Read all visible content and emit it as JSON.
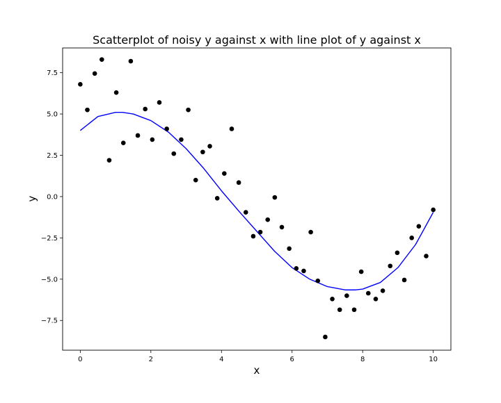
{
  "chart_data": {
    "type": "scatter",
    "title": "Scatterplot of noisy y against x with line plot of y against x",
    "xlabel": "x",
    "ylabel": "y",
    "xlim": [
      -0.5,
      10.5
    ],
    "ylim": [
      -9.3,
      9.0
    ],
    "xticks": [
      0,
      2,
      4,
      6,
      8,
      10
    ],
    "yticks": [
      -7.5,
      -5.0,
      -2.5,
      0.0,
      2.5,
      5.0,
      7.5
    ],
    "grid": false,
    "series": [
      {
        "kind": "scatter",
        "color": "#000000",
        "points": [
          [
            0.0,
            6.8
          ],
          [
            0.2,
            5.25
          ],
          [
            0.41,
            7.45
          ],
          [
            0.61,
            8.3
          ],
          [
            0.82,
            2.2
          ],
          [
            1.02,
            6.3
          ],
          [
            1.22,
            3.25
          ],
          [
            1.43,
            8.2
          ],
          [
            1.63,
            3.7
          ],
          [
            1.84,
            5.3
          ],
          [
            2.04,
            3.45
          ],
          [
            2.24,
            5.7
          ],
          [
            2.45,
            4.1
          ],
          [
            2.65,
            2.6
          ],
          [
            2.86,
            3.45
          ],
          [
            3.06,
            5.25
          ],
          [
            3.27,
            1.0
          ],
          [
            3.47,
            2.7
          ],
          [
            3.67,
            3.05
          ],
          [
            3.88,
            -0.1
          ],
          [
            4.08,
            1.4
          ],
          [
            4.29,
            4.1
          ],
          [
            4.49,
            0.85
          ],
          [
            4.69,
            -0.95
          ],
          [
            4.9,
            -2.4
          ],
          [
            5.1,
            -2.15
          ],
          [
            5.31,
            -1.4
          ],
          [
            5.51,
            -0.05
          ],
          [
            5.71,
            -1.85
          ],
          [
            5.92,
            -3.15
          ],
          [
            6.12,
            -4.35
          ],
          [
            6.33,
            -4.5
          ],
          [
            6.53,
            -2.15
          ],
          [
            6.73,
            -5.1
          ],
          [
            6.94,
            -8.5
          ],
          [
            7.14,
            -6.2
          ],
          [
            7.35,
            -6.85
          ],
          [
            7.55,
            -6.0
          ],
          [
            7.76,
            -6.85
          ],
          [
            7.96,
            -4.55
          ],
          [
            8.16,
            -5.85
          ],
          [
            8.37,
            -6.2
          ],
          [
            8.57,
            -5.7
          ],
          [
            8.78,
            -4.2
          ],
          [
            8.98,
            -3.4
          ],
          [
            9.18,
            -5.05
          ],
          [
            9.39,
            -2.5
          ],
          [
            9.59,
            -1.8
          ],
          [
            9.8,
            -3.6
          ],
          [
            10.0,
            -0.8
          ]
        ]
      },
      {
        "kind": "line",
        "color": "#0000ff",
        "points": [
          [
            0.0,
            4.0
          ],
          [
            0.5,
            4.85
          ],
          [
            1.0,
            5.1
          ],
          [
            1.2,
            5.1
          ],
          [
            1.5,
            5.0
          ],
          [
            2.0,
            4.6
          ],
          [
            2.5,
            3.9
          ],
          [
            3.0,
            2.9
          ],
          [
            3.5,
            1.7
          ],
          [
            4.0,
            0.35
          ],
          [
            4.5,
            -0.9
          ],
          [
            5.0,
            -2.1
          ],
          [
            5.5,
            -3.3
          ],
          [
            6.0,
            -4.3
          ],
          [
            6.5,
            -5.0
          ],
          [
            7.0,
            -5.45
          ],
          [
            7.5,
            -5.65
          ],
          [
            7.8,
            -5.65
          ],
          [
            8.0,
            -5.6
          ],
          [
            8.5,
            -5.2
          ],
          [
            9.0,
            -4.3
          ],
          [
            9.5,
            -2.9
          ],
          [
            10.0,
            -0.95
          ]
        ]
      }
    ]
  }
}
